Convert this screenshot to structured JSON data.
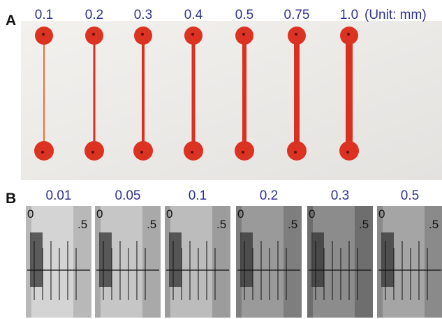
{
  "panel_a": {
    "label": "A",
    "widths": [
      "0.1",
      "0.2",
      "0.3",
      "0.4",
      "0.5",
      "0.75",
      "1.0"
    ],
    "unit": "(Unit: mm)"
  },
  "panel_b": {
    "label": "B",
    "values": [
      "0.01",
      "0.05",
      "0.1",
      "0.2",
      "0.3",
      "0.5"
    ],
    "scale_labels": [
      "0",
      ".5"
    ]
  }
}
